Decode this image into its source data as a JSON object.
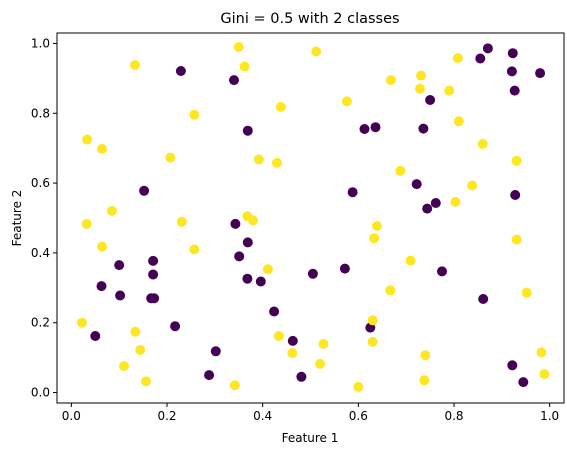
{
  "chart_data": {
    "type": "scatter",
    "title": "Gini = 0.5 with 2 classes",
    "xlabel": "Feature 1",
    "ylabel": "Feature 2",
    "xlim": [
      -0.03,
      1.03
    ],
    "ylim": [
      -0.03,
      1.03
    ],
    "xticks": [
      "0.0",
      "0.2",
      "0.4",
      "0.6",
      "0.8",
      "1.0"
    ],
    "xtick_values": [
      0.0,
      0.2,
      0.4,
      0.6,
      0.8,
      1.0
    ],
    "yticks": [
      "0.0",
      "0.2",
      "0.4",
      "0.6",
      "0.8",
      "1.0"
    ],
    "ytick_values": [
      0.0,
      0.2,
      0.4,
      0.6,
      0.8,
      1.0
    ],
    "grid": false,
    "series": [
      {
        "color": "#440154",
        "points": [
          [
            0.229,
            0.921
          ],
          [
            0.34,
            0.895
          ],
          [
            0.369,
            0.75
          ],
          [
            0.152,
            0.578
          ],
          [
            0.05,
            0.162
          ],
          [
            0.063,
            0.305
          ],
          [
            0.1,
            0.365
          ],
          [
            0.102,
            0.278
          ],
          [
            0.171,
            0.377
          ],
          [
            0.171,
            0.338
          ],
          [
            0.167,
            0.27
          ],
          [
            0.173,
            0.27
          ],
          [
            0.217,
            0.19
          ],
          [
            0.302,
            0.118
          ],
          [
            0.288,
            0.05
          ],
          [
            0.343,
            0.483
          ],
          [
            0.351,
            0.39
          ],
          [
            0.369,
            0.43
          ],
          [
            0.368,
            0.326
          ],
          [
            0.396,
            0.318
          ],
          [
            0.424,
            0.232
          ],
          [
            0.463,
            0.148
          ],
          [
            0.481,
            0.045
          ],
          [
            0.505,
            0.34
          ],
          [
            0.572,
            0.355
          ],
          [
            0.588,
            0.574
          ],
          [
            0.613,
            0.755
          ],
          [
            0.636,
            0.76
          ],
          [
            0.625,
            0.186
          ],
          [
            0.736,
            0.756
          ],
          [
            0.75,
            0.838
          ],
          [
            0.722,
            0.597
          ],
          [
            0.744,
            0.527
          ],
          [
            0.762,
            0.543
          ],
          [
            0.775,
            0.347
          ],
          [
            0.855,
            0.957
          ],
          [
            0.871,
            0.986
          ],
          [
            0.923,
            0.972
          ],
          [
            0.921,
            0.92
          ],
          [
            0.927,
            0.865
          ],
          [
            0.98,
            0.915
          ],
          [
            0.928,
            0.566
          ],
          [
            0.861,
            0.268
          ],
          [
            0.922,
            0.078
          ],
          [
            0.945,
            0.03
          ]
        ]
      },
      {
        "color": "#fde725",
        "points": [
          [
            0.133,
            0.938
          ],
          [
            0.35,
            0.99
          ],
          [
            0.362,
            0.934
          ],
          [
            0.512,
            0.977
          ],
          [
            0.257,
            0.796
          ],
          [
            0.438,
            0.818
          ],
          [
            0.033,
            0.725
          ],
          [
            0.064,
            0.698
          ],
          [
            0.207,
            0.673
          ],
          [
            0.392,
            0.668
          ],
          [
            0.43,
            0.658
          ],
          [
            0.576,
            0.834
          ],
          [
            0.668,
            0.895
          ],
          [
            0.731,
            0.908
          ],
          [
            0.729,
            0.87
          ],
          [
            0.79,
            0.865
          ],
          [
            0.808,
            0.958
          ],
          [
            0.81,
            0.777
          ],
          [
            0.86,
            0.712
          ],
          [
            0.931,
            0.664
          ],
          [
            0.688,
            0.635
          ],
          [
            0.838,
            0.593
          ],
          [
            0.803,
            0.546
          ],
          [
            0.931,
            0.438
          ],
          [
            0.952,
            0.286
          ],
          [
            0.983,
            0.115
          ],
          [
            0.989,
            0.053
          ],
          [
            0.032,
            0.483
          ],
          [
            0.085,
            0.52
          ],
          [
            0.231,
            0.489
          ],
          [
            0.064,
            0.418
          ],
          [
            0.257,
            0.41
          ],
          [
            0.368,
            0.505
          ],
          [
            0.38,
            0.493
          ],
          [
            0.411,
            0.353
          ],
          [
            0.639,
            0.477
          ],
          [
            0.633,
            0.442
          ],
          [
            0.709,
            0.378
          ],
          [
            0.667,
            0.293
          ],
          [
            0.022,
            0.2
          ],
          [
            0.134,
            0.174
          ],
          [
            0.144,
            0.122
          ],
          [
            0.11,
            0.076
          ],
          [
            0.156,
            0.032
          ],
          [
            0.342,
            0.021
          ],
          [
            0.434,
            0.162
          ],
          [
            0.462,
            0.113
          ],
          [
            0.52,
            0.082
          ],
          [
            0.527,
            0.139
          ],
          [
            0.6,
            0.016
          ],
          [
            0.63,
            0.207
          ],
          [
            0.63,
            0.145
          ],
          [
            0.74,
            0.107
          ],
          [
            0.738,
            0.035
          ]
        ]
      }
    ]
  }
}
